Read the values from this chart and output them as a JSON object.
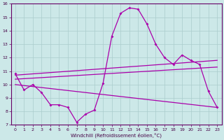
{
  "title": "",
  "xlabel": "Windchill (Refroidissement éolien,°C)",
  "background_color": "#cce8e8",
  "grid_color": "#aacccc",
  "line_color": "#aa00aa",
  "xlim": [
    -0.5,
    23.5
  ],
  "ylim": [
    7,
    16
  ],
  "xticks": [
    0,
    1,
    2,
    3,
    4,
    5,
    6,
    7,
    8,
    9,
    10,
    11,
    12,
    13,
    14,
    15,
    16,
    17,
    18,
    19,
    20,
    21,
    22,
    23
  ],
  "yticks": [
    7,
    8,
    9,
    10,
    11,
    12,
    13,
    14,
    15,
    16
  ],
  "line1_x": [
    0,
    1,
    2,
    3,
    4,
    5,
    6,
    7,
    8,
    9,
    10,
    11,
    12,
    13,
    14,
    15,
    16,
    17,
    18,
    19,
    20,
    21,
    22,
    23
  ],
  "line1_y": [
    10.8,
    9.6,
    10.0,
    9.4,
    8.5,
    8.5,
    8.3,
    7.2,
    7.8,
    8.1,
    10.1,
    13.6,
    15.3,
    15.7,
    15.6,
    14.5,
    13.0,
    12.0,
    11.5,
    12.2,
    11.8,
    11.5,
    9.5,
    8.3
  ],
  "line2_x": [
    0,
    23
  ],
  "line2_y": [
    10.7,
    11.8
  ],
  "line3_x": [
    0,
    23
  ],
  "line3_y": [
    10.4,
    11.3
  ],
  "line4_x": [
    0,
    23
  ],
  "line4_y": [
    10.0,
    8.3
  ]
}
